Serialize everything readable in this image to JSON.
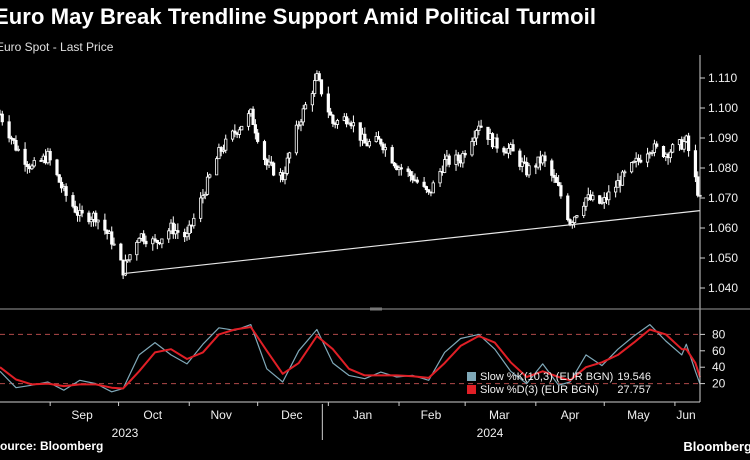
{
  "title": "Euro May Break Trendline Support Amid Political Turmoil",
  "subtitle": "Euro Spot - Last Price",
  "footer": {
    "source": "Source: Bloomberg",
    "brand": "Bloomberg"
  },
  "colors": {
    "background": "#000000",
    "price": "#ffffff",
    "slow_k": "#7fa8b8",
    "slow_d": "#e01f26",
    "grid_dash": "#b04a4a"
  },
  "chart_data": [
    {
      "type": "candlestick",
      "name": "Euro Spot - Last Price",
      "x_range": [
        "2023-08-10",
        "2024-06-12"
      ],
      "ylim": [
        1.036,
        1.116
      ],
      "yticks": [
        "1.040",
        "1.050",
        "1.060",
        "1.070",
        "1.080",
        "1.090",
        "1.100",
        "1.110"
      ],
      "xticks_month": [
        "Sep",
        "Oct",
        "Nov",
        "Dec",
        "Jan",
        "Feb",
        "Mar",
        "Apr",
        "May",
        "Jun"
      ],
      "xticks_year": [
        "2023",
        "2024"
      ],
      "grid": false,
      "trendline": {
        "start": [
          "2023-10-03",
          1.0448
        ],
        "end": [
          "2024-06-12",
          1.0658
        ]
      },
      "close_series": [
        [
          "2023-08-10",
          1.098
        ],
        [
          "2023-08-17",
          1.087
        ],
        [
          "2023-08-24",
          1.08
        ],
        [
          "2023-08-31",
          1.084
        ],
        [
          "2023-09-07",
          1.072
        ],
        [
          "2023-09-14",
          1.064
        ],
        [
          "2023-09-21",
          1.064
        ],
        [
          "2023-09-28",
          1.056
        ],
        [
          "2023-10-03",
          1.046
        ],
        [
          "2023-10-10",
          1.058
        ],
        [
          "2023-10-17",
          1.055
        ],
        [
          "2023-10-24",
          1.06
        ],
        [
          "2023-10-31",
          1.057
        ],
        [
          "2023-11-07",
          1.071
        ],
        [
          "2023-11-14",
          1.085
        ],
        [
          "2023-11-21",
          1.092
        ],
        [
          "2023-11-28",
          1.098
        ],
        [
          "2023-12-05",
          1.081
        ],
        [
          "2023-12-12",
          1.077
        ],
        [
          "2023-12-19",
          1.095
        ],
        [
          "2023-12-27",
          1.11
        ],
        [
          "2024-01-03",
          1.095
        ],
        [
          "2024-01-10",
          1.097
        ],
        [
          "2024-01-17",
          1.088
        ],
        [
          "2024-01-24",
          1.089
        ],
        [
          "2024-01-31",
          1.081
        ],
        [
          "2024-02-07",
          1.077
        ],
        [
          "2024-02-14",
          1.071
        ],
        [
          "2024-02-21",
          1.082
        ],
        [
          "2024-02-28",
          1.083
        ],
        [
          "2024-03-07",
          1.095
        ],
        [
          "2024-03-14",
          1.088
        ],
        [
          "2024-03-21",
          1.086
        ],
        [
          "2024-03-28",
          1.079
        ],
        [
          "2024-04-04",
          1.083
        ],
        [
          "2024-04-11",
          1.073
        ],
        [
          "2024-04-16",
          1.062
        ],
        [
          "2024-04-23",
          1.07
        ],
        [
          "2024-04-30",
          1.068
        ],
        [
          "2024-05-07",
          1.075
        ],
        [
          "2024-05-14",
          1.081
        ],
        [
          "2024-05-21",
          1.087
        ],
        [
          "2024-05-28",
          1.085
        ],
        [
          "2024-06-04",
          1.088
        ],
        [
          "2024-06-06",
          1.089
        ],
        [
          "2024-06-10",
          1.076
        ],
        [
          "2024-06-12",
          1.069
        ]
      ]
    },
    {
      "type": "line",
      "name": "Slow stochastic",
      "ylim": [
        0,
        100
      ],
      "yticks": [
        20,
        40,
        60,
        80
      ],
      "dashed_levels": [
        20,
        80
      ],
      "series": [
        {
          "name": "Slow %K(10,3) (EUR BGN)",
          "last_value": "19.546",
          "points": [
            [
              "2023-08-10",
              35
            ],
            [
              "2023-08-17",
              15
            ],
            [
              "2023-08-24",
              18
            ],
            [
              "2023-08-31",
              22
            ],
            [
              "2023-09-07",
              12
            ],
            [
              "2023-09-14",
              24
            ],
            [
              "2023-09-21",
              20
            ],
            [
              "2023-09-28",
              10
            ],
            [
              "2023-10-03",
              14
            ],
            [
              "2023-10-10",
              55
            ],
            [
              "2023-10-17",
              70
            ],
            [
              "2023-10-24",
              55
            ],
            [
              "2023-10-31",
              44
            ],
            [
              "2023-11-07",
              68
            ],
            [
              "2023-11-14",
              88
            ],
            [
              "2023-11-21",
              85
            ],
            [
              "2023-11-28",
              92
            ],
            [
              "2023-12-05",
              38
            ],
            [
              "2023-12-12",
              22
            ],
            [
              "2023-12-19",
              60
            ],
            [
              "2023-12-27",
              86
            ],
            [
              "2024-01-03",
              45
            ],
            [
              "2024-01-10",
              30
            ],
            [
              "2024-01-17",
              26
            ],
            [
              "2024-01-24",
              34
            ],
            [
              "2024-01-31",
              28
            ],
            [
              "2024-02-07",
              30
            ],
            [
              "2024-02-14",
              24
            ],
            [
              "2024-02-21",
              58
            ],
            [
              "2024-02-28",
              75
            ],
            [
              "2024-03-07",
              80
            ],
            [
              "2024-03-14",
              62
            ],
            [
              "2024-03-21",
              35
            ],
            [
              "2024-03-28",
              20
            ],
            [
              "2024-04-04",
              44
            ],
            [
              "2024-04-11",
              18
            ],
            [
              "2024-04-16",
              22
            ],
            [
              "2024-04-23",
              55
            ],
            [
              "2024-04-30",
              42
            ],
            [
              "2024-05-07",
              62
            ],
            [
              "2024-05-14",
              78
            ],
            [
              "2024-05-21",
              92
            ],
            [
              "2024-05-28",
              72
            ],
            [
              "2024-06-04",
              55
            ],
            [
              "2024-06-06",
              68
            ],
            [
              "2024-06-10",
              35
            ],
            [
              "2024-06-12",
              19.546
            ]
          ]
        },
        {
          "name": "Slow %D(3) (EUR BGN)",
          "last_value": "27.757",
          "points": [
            [
              "2023-08-10",
              40
            ],
            [
              "2023-08-17",
              25
            ],
            [
              "2023-08-24",
              19
            ],
            [
              "2023-08-31",
              20
            ],
            [
              "2023-09-07",
              17
            ],
            [
              "2023-09-14",
              19
            ],
            [
              "2023-09-21",
              19
            ],
            [
              "2023-09-28",
              15
            ],
            [
              "2023-10-03",
              14
            ],
            [
              "2023-10-10",
              35
            ],
            [
              "2023-10-17",
              58
            ],
            [
              "2023-10-24",
              62
            ],
            [
              "2023-10-31",
              50
            ],
            [
              "2023-11-07",
              58
            ],
            [
              "2023-11-14",
              80
            ],
            [
              "2023-11-21",
              86
            ],
            [
              "2023-11-28",
              89
            ],
            [
              "2023-12-05",
              60
            ],
            [
              "2023-12-12",
              32
            ],
            [
              "2023-12-19",
              45
            ],
            [
              "2023-12-27",
              78
            ],
            [
              "2024-01-03",
              62
            ],
            [
              "2024-01-10",
              38
            ],
            [
              "2024-01-17",
              30
            ],
            [
              "2024-01-24",
              30
            ],
            [
              "2024-01-31",
              30
            ],
            [
              "2024-02-07",
              29
            ],
            [
              "2024-02-14",
              27
            ],
            [
              "2024-02-21",
              45
            ],
            [
              "2024-02-28",
              66
            ],
            [
              "2024-03-07",
              78
            ],
            [
              "2024-03-14",
              70
            ],
            [
              "2024-03-21",
              46
            ],
            [
              "2024-03-28",
              28
            ],
            [
              "2024-04-04",
              35
            ],
            [
              "2024-04-11",
              28
            ],
            [
              "2024-04-16",
              24
            ],
            [
              "2024-04-23",
              40
            ],
            [
              "2024-04-30",
              46
            ],
            [
              "2024-05-07",
              55
            ],
            [
              "2024-05-14",
              70
            ],
            [
              "2024-05-21",
              86
            ],
            [
              "2024-05-28",
              80
            ],
            [
              "2024-06-04",
              62
            ],
            [
              "2024-06-06",
              62
            ],
            [
              "2024-06-10",
              45
            ],
            [
              "2024-06-12",
              27.757
            ]
          ]
        }
      ]
    }
  ]
}
